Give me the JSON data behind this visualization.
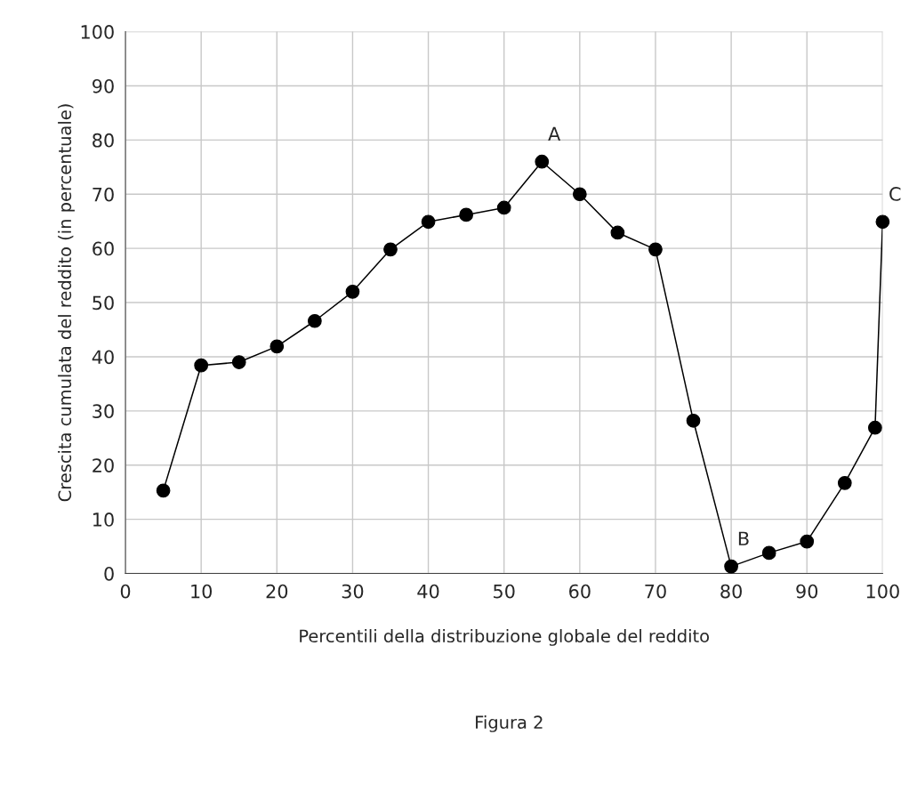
{
  "chart_data": {
    "type": "line",
    "xlabel": "Percentili della distribuzione globale del reddito",
    "ylabel": "Crescita cumulata del reddito (in percentuale)",
    "x": [
      5,
      10,
      15,
      20,
      25,
      30,
      35,
      40,
      45,
      50,
      55,
      60,
      65,
      70,
      75,
      80,
      85,
      90,
      95,
      99,
      100
    ],
    "series": [
      {
        "color": "#000000",
        "values": [
          15.3,
          38.4,
          39,
          41.9,
          46.6,
          52,
          59.8,
          64.9,
          66.2,
          67.5,
          76,
          70,
          62.9,
          59.8,
          28.2,
          1.3,
          3.8,
          5.9,
          16.7,
          26.9,
          64.9
        ]
      }
    ],
    "xlim": [
      0,
      100
    ],
    "xticks": [
      0,
      10,
      20,
      30,
      40,
      50,
      60,
      70,
      80,
      90,
      100
    ],
    "ylim": [
      0,
      100
    ],
    "yticks": [
      0,
      10,
      20,
      30,
      40,
      50,
      60,
      70,
      80,
      90,
      100
    ],
    "grid": true,
    "marker": "circle",
    "line_style": "solid",
    "annotations": [
      {
        "text": "A",
        "x": 55,
        "y": 76
      },
      {
        "text": "B",
        "x": 80,
        "y": 1.3
      },
      {
        "text": "C",
        "x": 100,
        "y": 64.9
      },
      "Figura 2"
    ]
  }
}
